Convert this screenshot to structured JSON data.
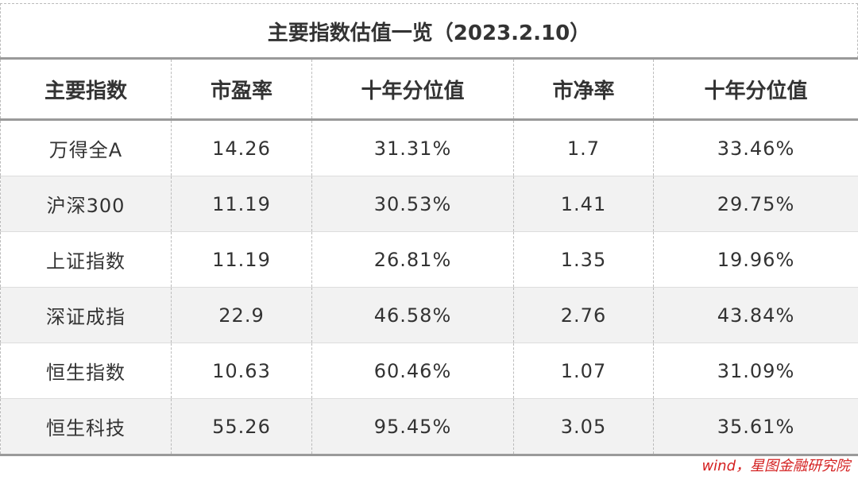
{
  "title": "主要指数估值一览（2023.2.10）",
  "table": {
    "header": [
      "主要指数",
      "市盈率",
      "十年分位值",
      "市净率",
      "十年分位值"
    ],
    "rows": [
      [
        "万得全A",
        "14.26",
        "31.31%",
        "1.7",
        "33.46%"
      ],
      [
        "沪深300",
        "11.19",
        "30.53%",
        "1.41",
        "29.75%"
      ],
      [
        "上证指数",
        "11.19",
        "26.81%",
        "1.35",
        "19.96%"
      ],
      [
        "深证成指",
        "22.9",
        "46.58%",
        "2.76",
        "43.84%"
      ],
      [
        "恒生指数",
        "10.63",
        "60.46%",
        "1.07",
        "31.09%"
      ],
      [
        "恒生科技",
        "55.26",
        "95.45%",
        "3.05",
        "35.61%"
      ]
    ]
  },
  "source": "wind，星图金融研究院"
}
